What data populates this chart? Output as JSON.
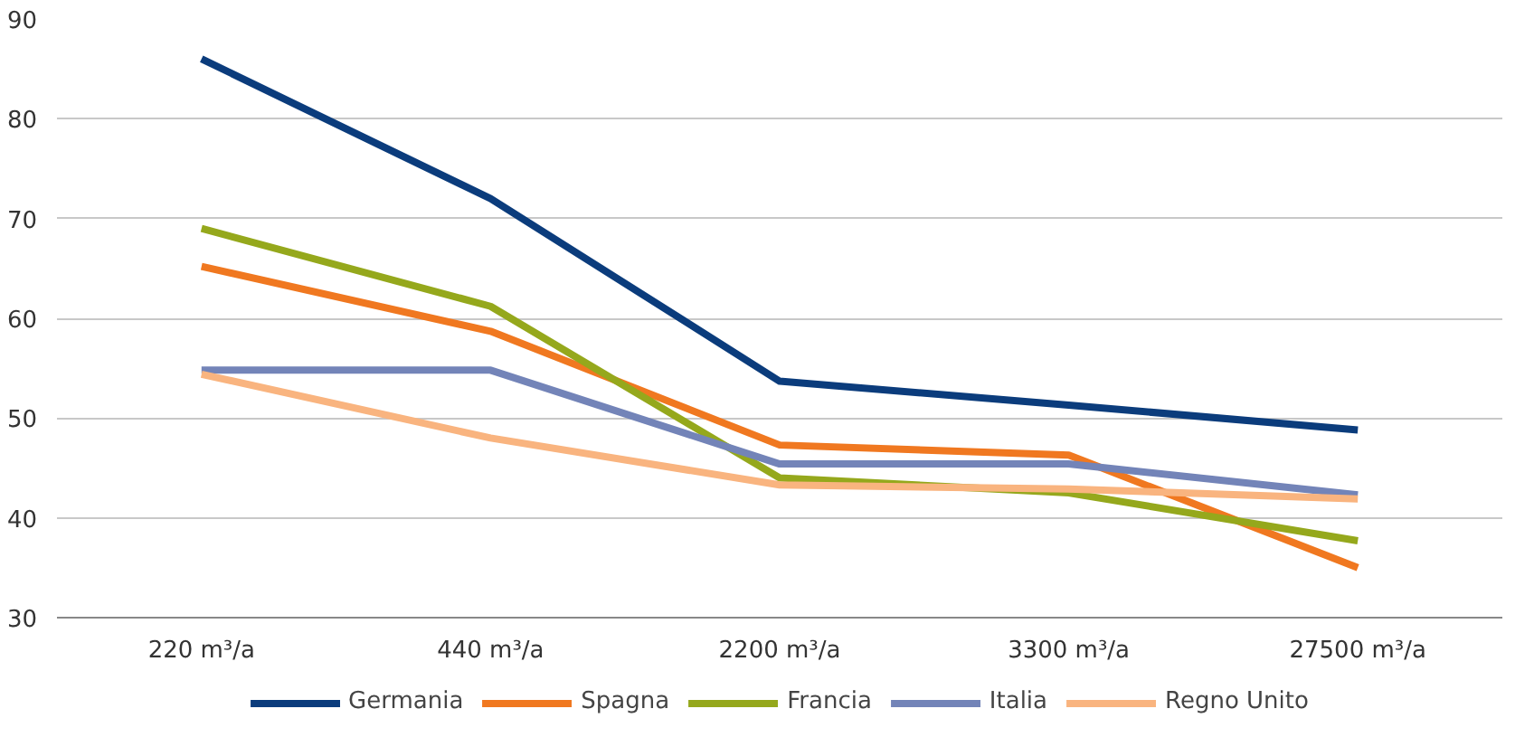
{
  "chart_data": {
    "type": "line",
    "categories": [
      "220 m³/a",
      "440 m³/a",
      "2200 m³/a",
      "3300 m³/a",
      "27500 m³/a"
    ],
    "ylim": [
      30,
      90
    ],
    "yticks": [
      30,
      40,
      50,
      60,
      70,
      80,
      90
    ],
    "grid": "y",
    "legend": "bottom",
    "marker": "none",
    "line_style": "solid",
    "series": [
      {
        "name": "Germania",
        "color": "#0b3c7c",
        "values": [
          86,
          72,
          53.7,
          51.3,
          48.8
        ]
      },
      {
        "name": "Spagna",
        "color": "#f07820",
        "values": [
          65.2,
          58.7,
          47.3,
          46.3,
          35
        ]
      },
      {
        "name": "Francia",
        "color": "#95a81c",
        "values": [
          69,
          61.2,
          44,
          42.5,
          37.7
        ]
      },
      {
        "name": "Italia",
        "color": "#7384b8",
        "values": [
          54.8,
          54.8,
          45.4,
          45.4,
          42.3
        ]
      },
      {
        "name": "Regno Unito",
        "color": "#f9b47f",
        "values": [
          54.4,
          48,
          43.3,
          42.9,
          41.9
        ]
      }
    ]
  }
}
